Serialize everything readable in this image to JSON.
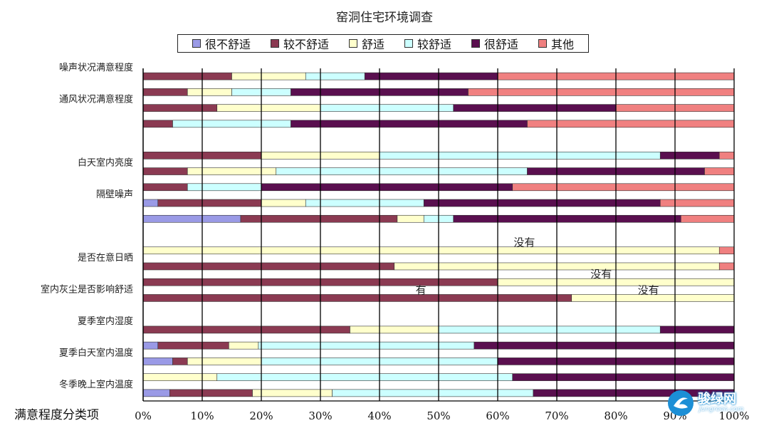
{
  "chart_data": {
    "type": "bar",
    "stacked": true,
    "orientation": "horizontal",
    "title": "窑洞住宅环境调查",
    "ylabel": "满意程度分类项",
    "xlim": [
      0,
      100
    ],
    "x_ticks": [
      "0%",
      "10%",
      "20%",
      "30%",
      "40%",
      "50%",
      "60%",
      "70%",
      "80%",
      "90%",
      "100%"
    ],
    "grid": "vertical",
    "legend": [
      "很不舒适",
      "较不舒适",
      "舒适",
      "较舒适",
      "很舒适",
      "其他"
    ],
    "legend_position": "top",
    "colors": [
      "#9a9ae6",
      "#8b3a52",
      "#ffffcc",
      "#ccffff",
      "#5a0f4f",
      "#f08080"
    ],
    "rows": [
      {
        "label": "噪声状况满意程度",
        "values": [
          0,
          15,
          12.5,
          10,
          22.5,
          40
        ]
      },
      {
        "label": "",
        "values": [
          0,
          7.5,
          7.5,
          10,
          30,
          45
        ]
      },
      {
        "label": "通风状况满意程度",
        "values": [
          0,
          12.5,
          17.5,
          22.5,
          27.5,
          20
        ]
      },
      {
        "label": "",
        "values": [
          0,
          5,
          0,
          20,
          40,
          35
        ]
      },
      {
        "label": "",
        "values": null
      },
      {
        "label": "",
        "values": [
          0,
          20,
          20,
          47.5,
          10,
          2.5
        ]
      },
      {
        "label": "白天室内亮度",
        "values": [
          0,
          7.5,
          15,
          42.5,
          30,
          5
        ]
      },
      {
        "label": "",
        "values": [
          0,
          7.5,
          0,
          12.5,
          42.5,
          37.5
        ]
      },
      {
        "label": "隔壁噪声",
        "values": [
          2.5,
          17.5,
          7.5,
          20,
          40,
          12.5
        ]
      },
      {
        "label": "",
        "values": [
          16.5,
          26.5,
          4.5,
          5,
          38.5,
          9
        ]
      },
      {
        "label": "",
        "values": null
      },
      {
        "label": "",
        "values": [
          0,
          0,
          97.5,
          0,
          0,
          2.5
        ]
      },
      {
        "label": "是否在意日晒",
        "values": [
          0,
          42.5,
          55,
          0,
          0,
          2.5
        ]
      },
      {
        "label": "",
        "values": [
          0,
          60,
          40,
          0,
          0,
          0
        ]
      },
      {
        "label": "室内灰尘是否影响舒适",
        "values": [
          0,
          72.5,
          27.5,
          0,
          0,
          0
        ]
      },
      {
        "label": "",
        "values": null
      },
      {
        "label": "夏季室内湿度",
        "values": [
          0,
          35,
          15,
          37.5,
          12.5,
          0
        ]
      },
      {
        "label": "",
        "values": [
          2.5,
          12,
          5,
          36.5,
          44,
          0
        ]
      },
      {
        "label": "夏季白天室内温度",
        "values": [
          5,
          2.5,
          12.5,
          40,
          40,
          0
        ]
      },
      {
        "label": "",
        "values": [
          0,
          0,
          12.5,
          50,
          37.5,
          0
        ]
      },
      {
        "label": "冬季晚上室内温度",
        "values": [
          4.5,
          14,
          13.5,
          34,
          34,
          0
        ]
      }
    ],
    "annotations": [
      {
        "text": "没有",
        "row": 11,
        "x": 64.5
      },
      {
        "text": "没有",
        "row": 13,
        "x": 77.5
      },
      {
        "text": "有",
        "row": 14,
        "x": 47
      },
      {
        "text": "没有",
        "row": 14,
        "x": 85.5
      }
    ]
  },
  "watermark": {
    "brand": "骏绿网",
    "url": "Jungreen.com"
  }
}
